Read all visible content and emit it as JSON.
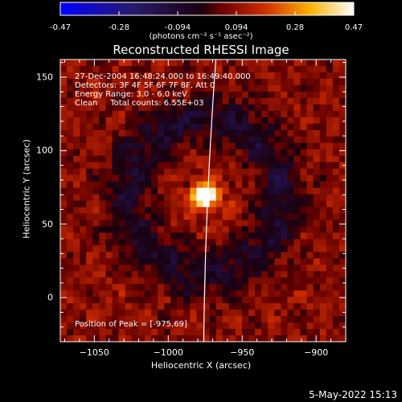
{
  "colorbar": {
    "ticks": [
      "-0.47",
      "-0.28",
      "-0.094",
      "0.094",
      "0.28",
      "0.47"
    ],
    "units": "(photons cm⁻² s⁻¹ asec⁻²)"
  },
  "footer": {
    "timestamp": "5-May-2022 15:13"
  },
  "chart_data": {
    "type": "heatmap",
    "title": "Reconstructed RHESSI Image",
    "xlabel": "Heliocentric X (arcsec)",
    "ylabel": "Heliocentric Y (arcsec)",
    "xlim": [
      -1073,
      -880
    ],
    "ylim": [
      -30,
      162
    ],
    "xticks": [
      -1050,
      -1000,
      -950,
      -900
    ],
    "xtick_labels": [
      "−1050",
      "−1000",
      "−950",
      "−900"
    ],
    "yticks": [
      0,
      50,
      100,
      150
    ],
    "ytick_labels": [
      "0",
      "50",
      "100",
      "150"
    ],
    "colorbar_range": [
      -0.47,
      0.47
    ],
    "colormap": "red-temperature (blue → black → red → yellow → white)",
    "peak": {
      "x": -975,
      "y": 69
    },
    "limb_line": {
      "x_at_top": -967,
      "x_at_bottom": -976
    },
    "info_lines": [
      "27-Dec-2004 16:48:24.000 to 16:49:40.000",
      "Detectors: 3F 4F 5F 6F 7F 8F, Att 0",
      "Energy Range: 3.0 - 6.0 keV",
      "Clean     Total counts: 6.55E+03"
    ],
    "peak_label": "Position of Peak = [-975,69]"
  }
}
